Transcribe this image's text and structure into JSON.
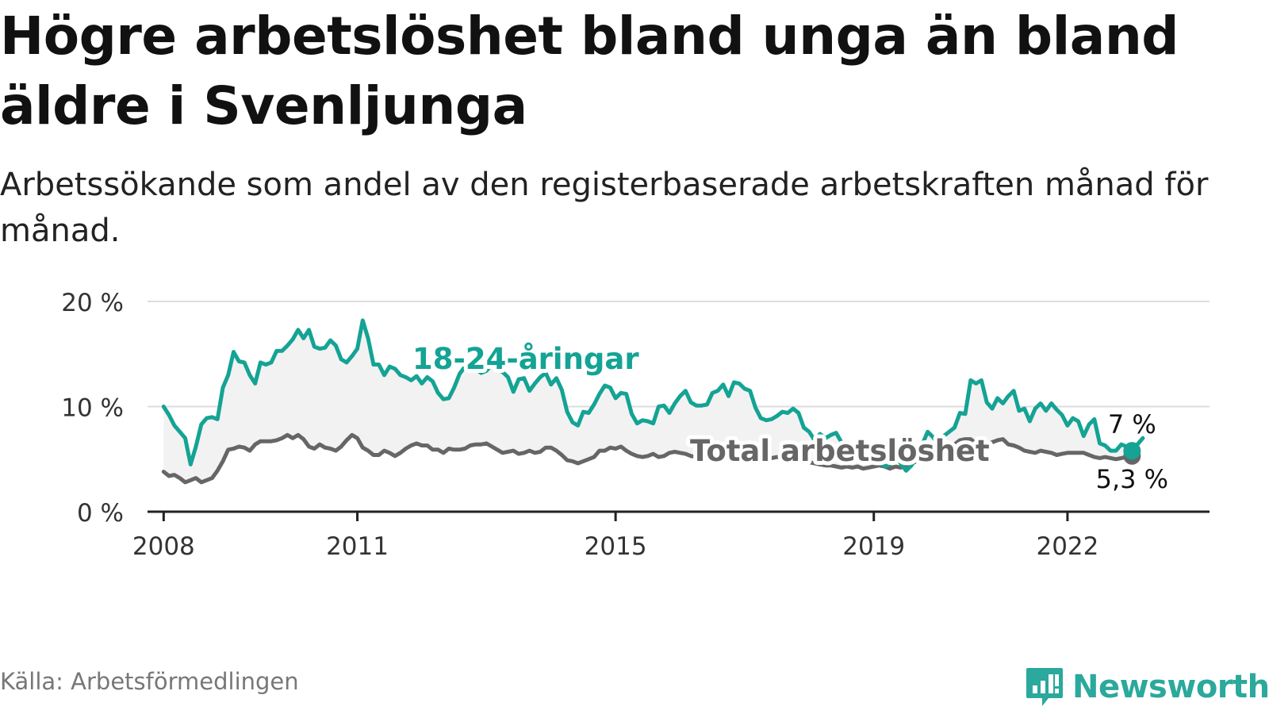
{
  "title": "Högre arbetslöshet bland unga än bland äldre i Svenljunga",
  "subtitle": "Arbetssökande som andel av den registerbaserade arbetskraften månad för månad.",
  "source": "Källa: Arbetsförmedlingen",
  "brand": "Newsworthy",
  "colors": {
    "youth": "#14a394",
    "total": "#666666",
    "band": "#f2f2f2",
    "grid": "#dddddd",
    "axis": "#222222",
    "brand": "#2aa99c"
  },
  "chart_data": {
    "type": "line",
    "x_start": 2008.0,
    "x_step_months": 1,
    "xlim": [
      2007.75,
      2024.2
    ],
    "ylim": [
      0,
      20
    ],
    "y_ticks": [
      0,
      10,
      20
    ],
    "y_tick_labels": [
      "0 %",
      "10 %",
      "20 %"
    ],
    "x_ticks": [
      2008,
      2011,
      2015,
      2019,
      2022
    ],
    "x_tick_labels": [
      "2008",
      "2011",
      "2015",
      "2019",
      "2022"
    ],
    "grid": "horizontal",
    "series": [
      {
        "name": "18-24-åringar",
        "label": "18-24-åringar",
        "end_label": "7 %",
        "values": [
          10,
          9.2,
          8.2,
          7.6,
          7,
          4.5,
          6.2,
          8.3,
          8.9,
          9,
          8.8,
          11.8,
          13,
          15.2,
          14.3,
          14.2,
          13,
          12.2,
          14.2,
          14,
          14.2,
          15.3,
          15.3,
          15.8,
          16.4,
          17.3,
          16.5,
          17.3,
          15.7,
          15.5,
          15.6,
          16.3,
          15.8,
          14.5,
          14.2,
          14.8,
          15.5,
          18.2,
          16.5,
          14,
          14,
          13,
          13.8,
          13.6,
          13,
          12.8,
          12.5,
          12.9,
          12.2,
          12.8,
          12.4,
          11.3,
          10.7,
          10.8,
          11.8,
          13.1,
          13.8,
          13.4,
          13.6,
          13.2,
          13.4,
          14,
          13.5,
          13.3,
          12.8,
          11.4,
          12.6,
          12.7,
          11.5,
          12.2,
          12.8,
          13.2,
          12.1,
          12.7,
          11.6,
          9.5,
          8.5,
          8.2,
          9.5,
          9.4,
          10.2,
          11.2,
          12,
          11.8,
          10.8,
          11.3,
          11.2,
          9.3,
          8.4,
          8.7,
          8.6,
          8.4,
          10,
          10.1,
          9.4,
          10.3,
          11,
          11.5,
          10.4,
          10.1,
          10.1,
          10.2,
          11.3,
          11.5,
          12.1,
          11,
          12.3,
          12.2,
          11.7,
          11.5,
          9.9,
          8.9,
          8.7,
          8.8,
          9.1,
          9.5,
          9.4,
          9.8,
          9.4,
          8,
          7.6,
          6.8,
          7.4,
          7,
          7.3,
          7.5,
          6.6,
          6,
          5.6,
          5.4,
          5.2,
          4.8,
          5,
          4.8,
          4.3,
          4.5,
          5.8,
          4.6,
          3.9,
          4.4,
          5.2,
          6.4,
          7.6,
          7.1,
          6.4,
          7.2,
          7.6,
          8,
          9.4,
          9.3,
          12.5,
          12.2,
          12.5,
          10.4,
          9.8,
          10.8,
          10.3,
          11,
          11.5,
          9.6,
          9.8,
          8.6,
          9.8,
          10.3,
          9.6,
          10.3,
          9.7,
          9.2,
          8.2,
          8.9,
          8.6,
          7.2,
          8.3,
          8.8,
          6.5,
          6.3,
          5.8,
          5.8,
          6.4,
          6.2,
          5.8,
          6.4,
          7
        ]
      },
      {
        "name": "Total arbetslöshet",
        "label": "Total arbetslöshet",
        "end_label": "5,3 %",
        "values": [
          3.8,
          3.4,
          3.5,
          3.2,
          2.8,
          3,
          3.2,
          2.8,
          3,
          3.2,
          3.9,
          4.8,
          5.9,
          6,
          6.2,
          6.1,
          5.8,
          6.4,
          6.7,
          6.7,
          6.7,
          6.8,
          7,
          7.3,
          7,
          7.3,
          6.9,
          6.2,
          6,
          6.4,
          6.1,
          6,
          5.8,
          6.2,
          6.8,
          7.3,
          7,
          6.1,
          5.8,
          5.4,
          5.4,
          5.8,
          5.6,
          5.3,
          5.6,
          6,
          6.3,
          6.5,
          6.3,
          6.3,
          5.9,
          5.9,
          5.6,
          6,
          5.9,
          5.9,
          6,
          6.3,
          6.4,
          6.4,
          6.5,
          6.2,
          5.9,
          5.6,
          5.7,
          5.8,
          5.5,
          5.6,
          5.8,
          5.6,
          5.7,
          6.1,
          6.1,
          5.8,
          5.4,
          4.9,
          4.8,
          4.6,
          4.8,
          5,
          5.2,
          5.8,
          5.8,
          6.1,
          6,
          6.2,
          5.8,
          5.5,
          5.3,
          5.2,
          5.3,
          5.5,
          5.2,
          5.3,
          5.6,
          5.7,
          5.6,
          5.5,
          5.3,
          5.2,
          5.3,
          5.4,
          5.6,
          5.3,
          5.5,
          5.7,
          5.5,
          5.6,
          5.4,
          5.2,
          5.1,
          5,
          5,
          5.1,
          5.2,
          5.1,
          5,
          5,
          4.8,
          4.7,
          4.7,
          4.6,
          4.5,
          4.4,
          4.4,
          4.3,
          4.2,
          4.3,
          4.2,
          4.3,
          4.1,
          4.2,
          4.3,
          4.4,
          4.3,
          4.1,
          4.3,
          4.2,
          4.4,
          4.6,
          4.8,
          5,
          5.2,
          5.4,
          5.6,
          5.9,
          6.1,
          6.4,
          6.8,
          6.9,
          6.9,
          6.5,
          6.2,
          6.4,
          6.6,
          6.8,
          6.9,
          6.4,
          6.3,
          6.1,
          5.8,
          5.7,
          5.6,
          5.8,
          5.7,
          5.6,
          5.4,
          5.5,
          5.6,
          5.6,
          5.6,
          5.6,
          5.4,
          5.2,
          5.1,
          5.2,
          5.1,
          5,
          5.1,
          5.2,
          5.3
        ]
      }
    ]
  }
}
